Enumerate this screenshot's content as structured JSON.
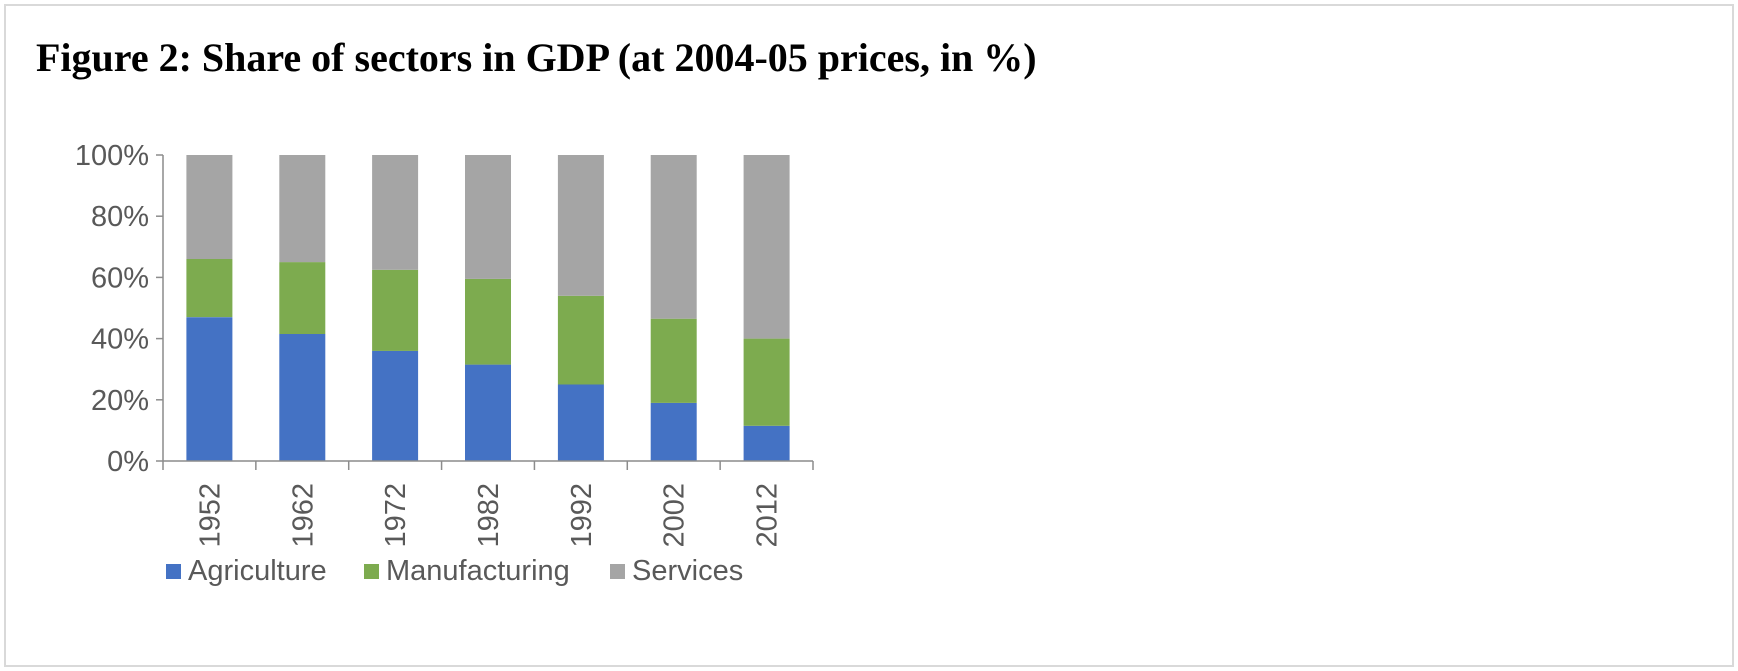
{
  "figure": {
    "title": "Figure 2: Share of sectors in GDP (at 2004-05 prices, in %)"
  },
  "chart_data": {
    "type": "bar",
    "stacked": true,
    "title": "",
    "xlabel": "",
    "ylabel": "",
    "categories": [
      "1952",
      "1962",
      "1972",
      "1982",
      "1992",
      "2002",
      "2012"
    ],
    "series": [
      {
        "name": "Agriculture",
        "color": "#4472c4",
        "values": [
          47,
          41.5,
          36,
          31.5,
          25,
          19,
          11.5
        ]
      },
      {
        "name": "Manufacturing",
        "color": "#7dab4f",
        "values": [
          19,
          23.5,
          26.5,
          28,
          29,
          27.5,
          28.5
        ]
      },
      {
        "name": "Services",
        "color": "#a5a5a5",
        "values": [
          34,
          35,
          37.5,
          40.5,
          46,
          53.5,
          60
        ]
      }
    ],
    "ylim": [
      0,
      100
    ],
    "yticks": [
      "0%",
      "20%",
      "40%",
      "60%",
      "80%",
      "100%"
    ],
    "grid": false,
    "legend": "bottom"
  }
}
